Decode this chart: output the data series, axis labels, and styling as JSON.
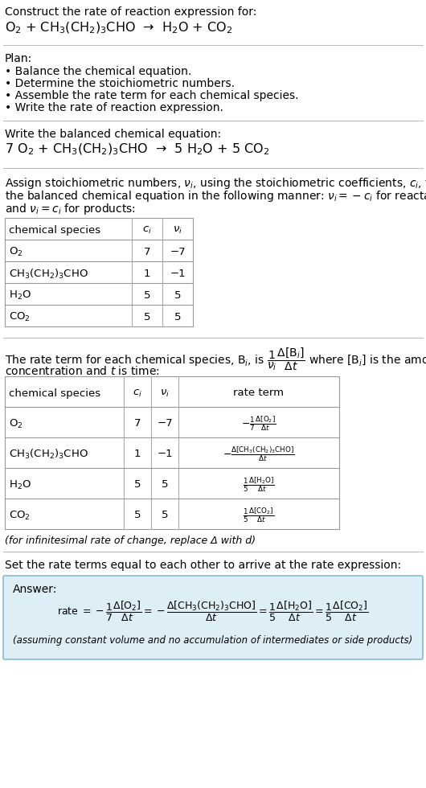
{
  "bg_color": "#ffffff",
  "section1_title": "Construct the rate of reaction expression for:",
  "section1_reaction": "O$_2$ + CH$_3$(CH$_2$)$_3$CHO  →  H$_2$O + CO$_2$",
  "plan_title": "Plan:",
  "plan_items": [
    "• Balance the chemical equation.",
    "• Determine the stoichiometric numbers.",
    "• Assemble the rate term for each chemical species.",
    "• Write the rate of reaction expression."
  ],
  "balanced_title": "Write the balanced chemical equation:",
  "balanced_eq": "7 O$_2$ + CH$_3$(CH$_2$)$_3$CHO  →  5 H$_2$O + 5 CO$_2$",
  "table1_headers": [
    "chemical species",
    "$c_i$",
    "$\\nu_i$"
  ],
  "table1_data": [
    [
      "O$_2$",
      "7",
      "−7"
    ],
    [
      "CH$_3$(CH$_2$)$_3$CHO",
      "1",
      "−1"
    ],
    [
      "H$_2$O",
      "5",
      "5"
    ],
    [
      "CO$_2$",
      "5",
      "5"
    ]
  ],
  "table2_headers": [
    "chemical species",
    "$c_i$",
    "$\\nu_i$",
    "rate term"
  ],
  "table2_data": [
    [
      "O$_2$",
      "7",
      "−7"
    ],
    [
      "CH$_3$(CH$_2$)$_3$CHO",
      "1",
      "−1"
    ],
    [
      "H$_2$O",
      "5",
      "5"
    ],
    [
      "CO$_2$",
      "5",
      "5"
    ]
  ],
  "rate_terms": [
    "$-\\frac{1}{7}\\frac{\\Delta[\\mathrm{O_2}]}{\\Delta t}$",
    "$-\\frac{\\Delta[\\mathrm{CH_3(CH_2)_3CHO}]}{\\Delta t}$",
    "$\\frac{1}{5}\\frac{\\Delta[\\mathrm{H_2O}]}{\\Delta t}$",
    "$\\frac{1}{5}\\frac{\\Delta[\\mathrm{CO_2}]}{\\Delta t}$"
  ],
  "infinitesimal_note": "(for infinitesimal rate of change, replace Δ with d)",
  "set_rate_text": "Set the rate terms equal to each other to arrive at the rate expression:",
  "answer_box_color": "#ddeef6",
  "answer_box_border": "#88bbcc",
  "answer_label": "Answer:",
  "assuming_note": "(assuming constant volume and no accumulation of intermediates or side products)"
}
